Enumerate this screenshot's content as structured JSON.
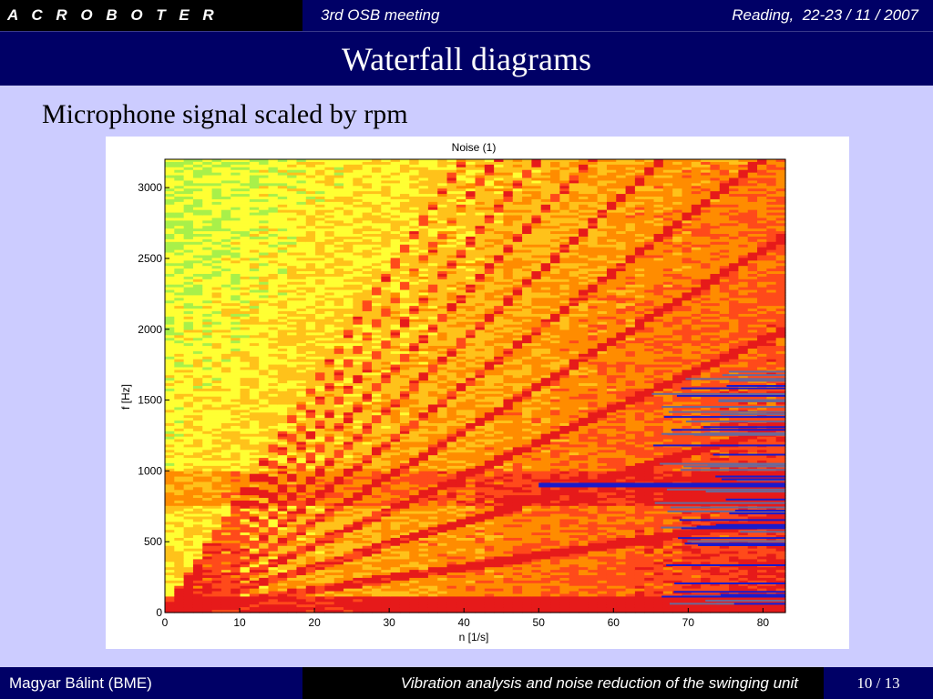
{
  "header": {
    "brand": "A C R O B O T E R",
    "meeting": "3rd OSB meeting",
    "place_date": "Reading,  22-23 / 11 / 2007",
    "brand_bg": "#000000",
    "bar_bg": "#000066"
  },
  "slide": {
    "title": "Waterfall diagrams",
    "subtitle": "Microphone signal scaled by rpm",
    "background": "#ccccff"
  },
  "footer": {
    "author": "Magyar Bálint (BME)",
    "talk_title": "Vibration analysis and noise reduction of the swinging unit",
    "page": "10 / 13"
  },
  "chart_data": {
    "type": "heatmap",
    "title": "Noise (1)",
    "xlabel": "n [1/s]",
    "ylabel": "f [Hz]",
    "xlim": [
      0,
      83
    ],
    "ylim": [
      0,
      3200
    ],
    "x_ticks": [
      0,
      10,
      20,
      30,
      40,
      50,
      60,
      70,
      80
    ],
    "y_ticks": [
      0,
      500,
      1000,
      1500,
      2000,
      2500,
      3000
    ],
    "colormap": [
      "#2bd6a8",
      "#a8f04a",
      "#ffff33",
      "#ffc21a",
      "#ff8c00",
      "#ff4a1a",
      "#e61a1a",
      "#1a1acc"
    ],
    "grid": false,
    "legend": "none",
    "strong_band_hz": 900,
    "strong_band_start_n": 50,
    "order_line_slopes_hz_per_rps": [
      8,
      16,
      24,
      32,
      40,
      48,
      56,
      64,
      72,
      80
    ],
    "dropout_region_start_n": 65
  }
}
